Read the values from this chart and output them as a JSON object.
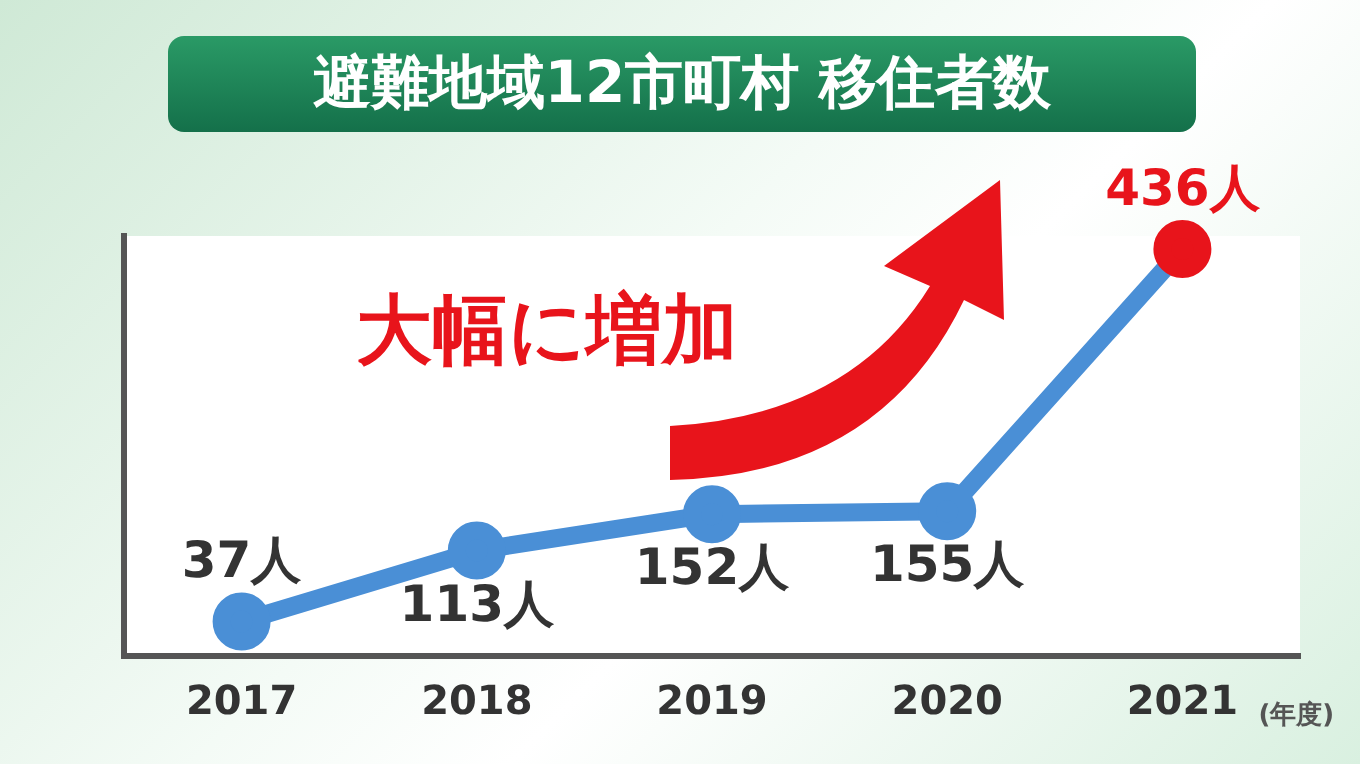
{
  "chart_data": {
    "type": "line",
    "title": "避難地域12市町村 移住者数",
    "xlabel": "(年度)",
    "annotations": [
      "大幅に増加"
    ],
    "categories": [
      "2017",
      "2018",
      "2019",
      "2020",
      "2021"
    ],
    "series": [
      {
        "color": "#4a8fd6",
        "values": [
          37,
          113,
          152,
          155,
          436
        ],
        "colors": [
          "#4a8fd6",
          "#4a8fd6",
          "#4a8fd6",
          "#4a8fd6",
          "#e8141b"
        ],
        "value_labels": [
          "37人",
          "113人",
          "152人",
          "155人",
          "436人"
        ]
      }
    ],
    "marker": "circle",
    "line_style": "solid",
    "grid": false,
    "legend": false,
    "tick_labels": "x"
  }
}
